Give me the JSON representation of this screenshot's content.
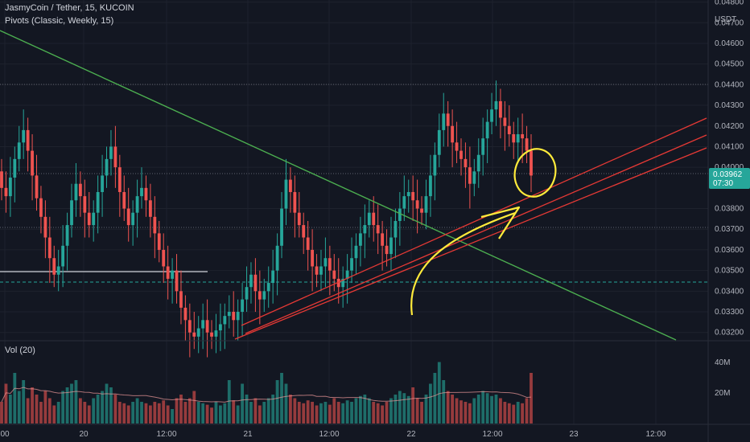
{
  "header": {
    "title": "JasmyCoin / Tether, 15, KUCOIN",
    "indicator": "Pivots (Classic, Weekly, 15)",
    "volume_label": "Vol (20)"
  },
  "price_axis": {
    "currency": "USDT",
    "ticks": [
      "0.04800",
      "0.04700",
      "0.04600",
      "0.04500",
      "0.04400",
      "0.04300",
      "0.04200",
      "0.04100",
      "0.04000",
      "0.03800",
      "0.03700",
      "0.03600",
      "0.03500",
      "0.03400",
      "0.03300",
      "0.03200"
    ],
    "last_price": "0.03962",
    "countdown": "07:30"
  },
  "volume_axis": {
    "ticks": [
      "40M",
      "20M"
    ]
  },
  "time_axis": {
    "ticks": [
      "00",
      "20",
      "12:00",
      "21",
      "12:00",
      "22",
      "12:00",
      "23",
      "12:00"
    ]
  },
  "colors": {
    "background": "#131722",
    "up": "#26a69a",
    "down": "#ef5350",
    "trendline": "#4caf50",
    "channel": "#e53935",
    "annotation": "#ffeb3b",
    "pivot": "#d1d4dc",
    "dashed_level": "#26a69a"
  },
  "chart_data": {
    "type": "candlestick",
    "symbol": "JasmyCoin / Tether",
    "interval": "15",
    "exchange": "KUCOIN",
    "ylim": [
      0.0316,
      0.0481
    ],
    "last_price": 0.03962,
    "candles_close": [
      0.039,
      0.0386,
      0.0395,
      0.0404,
      0.0412,
      0.0418,
      0.0408,
      0.0396,
      0.0385,
      0.0376,
      0.0366,
      0.0356,
      0.0348,
      0.0352,
      0.0362,
      0.0372,
      0.0384,
      0.0392,
      0.0386,
      0.0378,
      0.0372,
      0.0378,
      0.0388,
      0.0396,
      0.0404,
      0.041,
      0.04,
      0.0388,
      0.038,
      0.0372,
      0.0378,
      0.0386,
      0.039,
      0.0384,
      0.0376,
      0.0368,
      0.036,
      0.0352,
      0.0346,
      0.035,
      0.034,
      0.0332,
      0.0326,
      0.032,
      0.0318,
      0.0322,
      0.0326,
      0.032,
      0.0318,
      0.0321,
      0.0324,
      0.0328,
      0.033,
      0.0326,
      0.033,
      0.0336,
      0.0342,
      0.0348,
      0.034,
      0.0336,
      0.034,
      0.0344,
      0.035,
      0.0362,
      0.038,
      0.0394,
      0.0388,
      0.0378,
      0.0372,
      0.0366,
      0.036,
      0.0352,
      0.0348,
      0.0352,
      0.0356,
      0.035,
      0.0346,
      0.0342,
      0.0346,
      0.035,
      0.0356,
      0.0362,
      0.0368,
      0.0372,
      0.0378,
      0.0372,
      0.0368,
      0.0362,
      0.0358,
      0.0366,
      0.0374,
      0.038,
      0.0386,
      0.0388,
      0.0384,
      0.038,
      0.0378,
      0.0386,
      0.0396,
      0.0406,
      0.0418,
      0.0426,
      0.042,
      0.0412,
      0.0408,
      0.0404,
      0.04,
      0.0392,
      0.0398,
      0.0406,
      0.0414,
      0.0422,
      0.0428,
      0.0432,
      0.0424,
      0.042,
      0.0416,
      0.0412,
      0.0416,
      0.0414,
      0.0408,
      0.0396
    ],
    "candles_open": [
      0.0398,
      0.039,
      0.0386,
      0.0395,
      0.0404,
      0.0412,
      0.0418,
      0.0408,
      0.0396,
      0.0385,
      0.0376,
      0.0366,
      0.0356,
      0.0348,
      0.0352,
      0.0362,
      0.0372,
      0.0384,
      0.0392,
      0.0386,
      0.0378,
      0.0372,
      0.0378,
      0.0388,
      0.0396,
      0.0404,
      0.041,
      0.04,
      0.0388,
      0.038,
      0.0372,
      0.0378,
      0.0386,
      0.039,
      0.0384,
      0.0376,
      0.0368,
      0.036,
      0.0352,
      0.0346,
      0.035,
      0.034,
      0.0332,
      0.0326,
      0.032,
      0.0318,
      0.0322,
      0.0326,
      0.032,
      0.0318,
      0.0321,
      0.0324,
      0.0328,
      0.033,
      0.0326,
      0.033,
      0.0336,
      0.0342,
      0.0348,
      0.034,
      0.0336,
      0.034,
      0.0344,
      0.035,
      0.0362,
      0.038,
      0.0394,
      0.0388,
      0.0378,
      0.0372,
      0.0366,
      0.036,
      0.0352,
      0.0348,
      0.0352,
      0.0356,
      0.035,
      0.0346,
      0.0342,
      0.0346,
      0.035,
      0.0356,
      0.0362,
      0.0368,
      0.0372,
      0.0378,
      0.0372,
      0.0368,
      0.0362,
      0.0358,
      0.0366,
      0.0374,
      0.038,
      0.0386,
      0.0388,
      0.0384,
      0.038,
      0.0378,
      0.0386,
      0.0396,
      0.0406,
      0.0418,
      0.0426,
      0.042,
      0.0412,
      0.0408,
      0.0404,
      0.04,
      0.0392,
      0.0398,
      0.0406,
      0.0414,
      0.0422,
      0.0428,
      0.0432,
      0.0424,
      0.042,
      0.0416,
      0.0412,
      0.0416,
      0.0414,
      0.0408
    ],
    "volume_relative": [
      0.3,
      0.55,
      0.4,
      0.7,
      0.45,
      0.6,
      0.35,
      0.5,
      0.4,
      0.3,
      0.45,
      0.35,
      0.25,
      0.3,
      0.45,
      0.5,
      0.55,
      0.6,
      0.35,
      0.3,
      0.25,
      0.35,
      0.4,
      0.45,
      0.55,
      0.5,
      0.4,
      0.3,
      0.28,
      0.25,
      0.3,
      0.35,
      0.3,
      0.28,
      0.25,
      0.3,
      0.28,
      0.32,
      0.25,
      0.2,
      0.35,
      0.4,
      0.3,
      0.35,
      0.45,
      0.3,
      0.28,
      0.26,
      0.22,
      0.3,
      0.25,
      0.28,
      0.6,
      0.32,
      0.25,
      0.55,
      0.4,
      0.3,
      0.35,
      0.25,
      0.3,
      0.35,
      0.4,
      0.6,
      0.7,
      0.55,
      0.4,
      0.35,
      0.3,
      0.28,
      0.32,
      0.3,
      0.25,
      0.28,
      0.3,
      0.26,
      0.35,
      0.3,
      0.28,
      0.32,
      0.3,
      0.35,
      0.38,
      0.4,
      0.35,
      0.3,
      0.28,
      0.25,
      0.3,
      0.35,
      0.4,
      0.45,
      0.42,
      0.38,
      0.5,
      0.35,
      0.3,
      0.4,
      0.55,
      0.7,
      0.85,
      0.6,
      0.45,
      0.4,
      0.35,
      0.32,
      0.3,
      0.28,
      0.35,
      0.4,
      0.45,
      0.42,
      0.38,
      0.4,
      0.35,
      0.3,
      0.28,
      0.26,
      0.3,
      0.28,
      0.35,
      0.7
    ]
  }
}
